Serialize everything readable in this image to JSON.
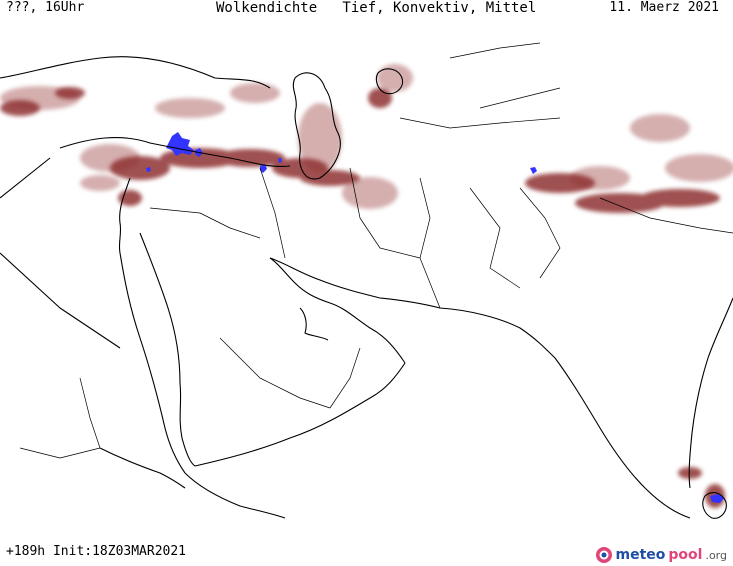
{
  "header": {
    "left": "???, 16Uhr",
    "center": "Wolkendichte   Tief, Konvektiv, Mittel",
    "right": "11. Maerz 2021"
  },
  "footer": {
    "run_info": "+189h Init:18Z03MAR2021"
  },
  "logo": {
    "name_part1": "meteo",
    "name_part2": "pool",
    "suffix": ".org",
    "icon": "meteopool-logo-icon"
  },
  "colors": {
    "cloud_dense": "#8b2a2a",
    "cloud_light": "#c48a8a",
    "cloud_convective": "#3333ff",
    "coastline": "#000000",
    "border": "#000000"
  }
}
